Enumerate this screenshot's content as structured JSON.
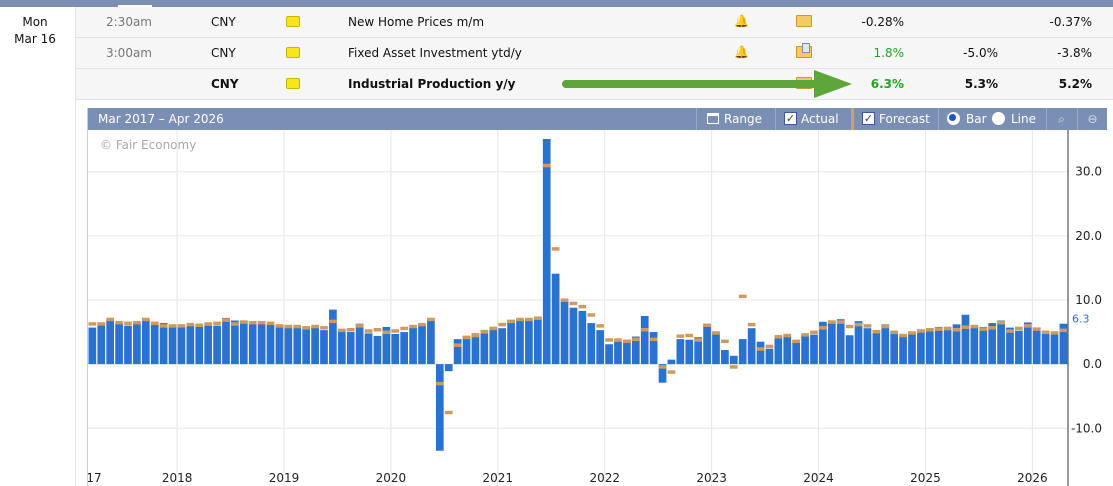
{
  "calendar": {
    "date_day": "Mon",
    "date_md": "Mar 16",
    "rows": [
      {
        "time": "2:30am",
        "currency": "CNY",
        "event": "New Home Prices m/m",
        "actual": "-0.28%",
        "forecast": "",
        "previous": "-0.37%",
        "bold": false,
        "actual_green": false,
        "doc": false
      },
      {
        "time": "3:00am",
        "currency": "CNY",
        "event": "Fixed Asset Investment ytd/y",
        "actual": "1.8%",
        "forecast": "-5.0%",
        "previous": "-3.8%",
        "bold": false,
        "actual_green": true,
        "doc": true
      },
      {
        "time": "",
        "currency": "CNY",
        "event": "Industrial Production y/y",
        "actual": "6.3%",
        "forecast": "5.3%",
        "previous": "5.2%",
        "bold": true,
        "actual_green": true,
        "doc": false
      }
    ],
    "arrow_color": "#5ea53a"
  },
  "chart_header": {
    "range_title": "Mar 2017 – Apr 2026",
    "range_button": "Range",
    "actual_label": "Actual",
    "forecast_label": "Forecast",
    "bar_label": "Bar",
    "line_label": "Line"
  },
  "chart_data": {
    "type": "bar",
    "title": "Mar 2017 – Apr 2026",
    "watermark": "© Fair Economy",
    "x_tick_labels": [
      "17",
      "2018",
      "2019",
      "2020",
      "2021",
      "2022",
      "2023",
      "2024",
      "2025",
      "2026"
    ],
    "y_ticks": [
      30.0,
      20.0,
      10.0,
      0.0,
      -10.0
    ],
    "y_tick_labels": [
      "30.0",
      "20.0",
      "10.0",
      "0.0",
      "-10.0"
    ],
    "ylim": [
      -19,
      36.5
    ],
    "last_value_label": "6.3",
    "colors": {
      "actual": "#2a72d0",
      "forecast": "#cf9a5e",
      "grid": "#e6e6e6"
    },
    "series": [
      {
        "name": "Actual",
        "values": [
          5.7,
          6.5,
          6.8,
          6.4,
          6.0,
          6.6,
          6.9,
          6.2,
          6.4,
          6.1,
          5.9,
          6.1,
          6.2,
          6.0,
          6.0,
          7.2,
          6.8,
          6.7,
          6.5,
          6.4,
          6.2,
          6.1,
          6.0,
          5.8,
          5.7,
          5.7,
          5.3,
          8.5,
          5.4,
          5.0,
          6.3,
          4.8,
          4.4,
          5.8,
          4.7,
          5.0,
          5.7,
          6.2,
          6.9,
          -13.5,
          -1.1,
          3.9,
          4.4,
          4.8,
          4.8,
          5.6,
          5.6,
          6.9,
          6.9,
          7.0,
          7.3,
          35.1,
          14.1,
          9.8,
          8.8,
          8.3,
          6.4,
          5.3,
          3.1,
          3.5,
          3.8,
          4.3,
          7.5,
          5.0,
          -2.9,
          0.7,
          3.9,
          3.8,
          4.2,
          6.3,
          5.0,
          2.2,
          1.3,
          3.9,
          5.6,
          3.5,
          2.4,
          4.4,
          4.5,
          3.7,
          4.5,
          4.6,
          6.6,
          6.7,
          7.0,
          4.5,
          6.7,
          5.6,
          5.3,
          6.2,
          5.1,
          4.5,
          5.0,
          5.4,
          5.6,
          5.8,
          5.3,
          6.2,
          7.7,
          6.1,
          5.8,
          6.4,
          6.8,
          5.7,
          5.2,
          6.5,
          5.7,
          4.8,
          4.9,
          6.3
        ]
      },
      {
        "name": "Forecast",
        "values": [
          6.3,
          6.3,
          7.0,
          6.5,
          6.4,
          6.5,
          7.0,
          6.4,
          6.0,
          6.0,
          6.0,
          6.2,
          6.1,
          6.3,
          6.4,
          6.9,
          6.3,
          6.6,
          6.5,
          6.5,
          6.4,
          6.0,
          5.9,
          5.9,
          5.7,
          5.9,
          5.7,
          6.7,
          5.3,
          5.4,
          6.0,
          5.2,
          5.4,
          5.0,
          5.2,
          5.6,
          5.9,
          6.2,
          7.0,
          -3.0,
          -7.5,
          3.0,
          4.2,
          4.5,
          5.1,
          5.6,
          6.2,
          6.7,
          7.0,
          7.0,
          7.2,
          31.0,
          18.0,
          10.0,
          9.5,
          9.0,
          7.7,
          6.0,
          3.8,
          3.8,
          3.6,
          3.9,
          5.4,
          3.9,
          -0.4,
          -1.2,
          4.4,
          4.5,
          3.8,
          6.1,
          4.9,
          3.6,
          -0.4,
          10.6,
          6.2,
          2.4,
          2.8,
          4.3,
          4.5,
          3.6,
          4.6,
          5.0,
          5.7,
          6.6,
          6.6,
          5.9,
          6.2,
          6.0,
          5.1,
          5.9,
          5.0,
          4.5,
          4.9,
          5.2,
          5.4,
          5.5,
          5.6,
          5.4,
          5.8,
          5.9,
          5.5,
          5.7,
          6.5,
          5.2,
          5.6,
          6.0,
          5.5,
          5.0,
          4.9,
          5.3
        ]
      }
    ]
  }
}
